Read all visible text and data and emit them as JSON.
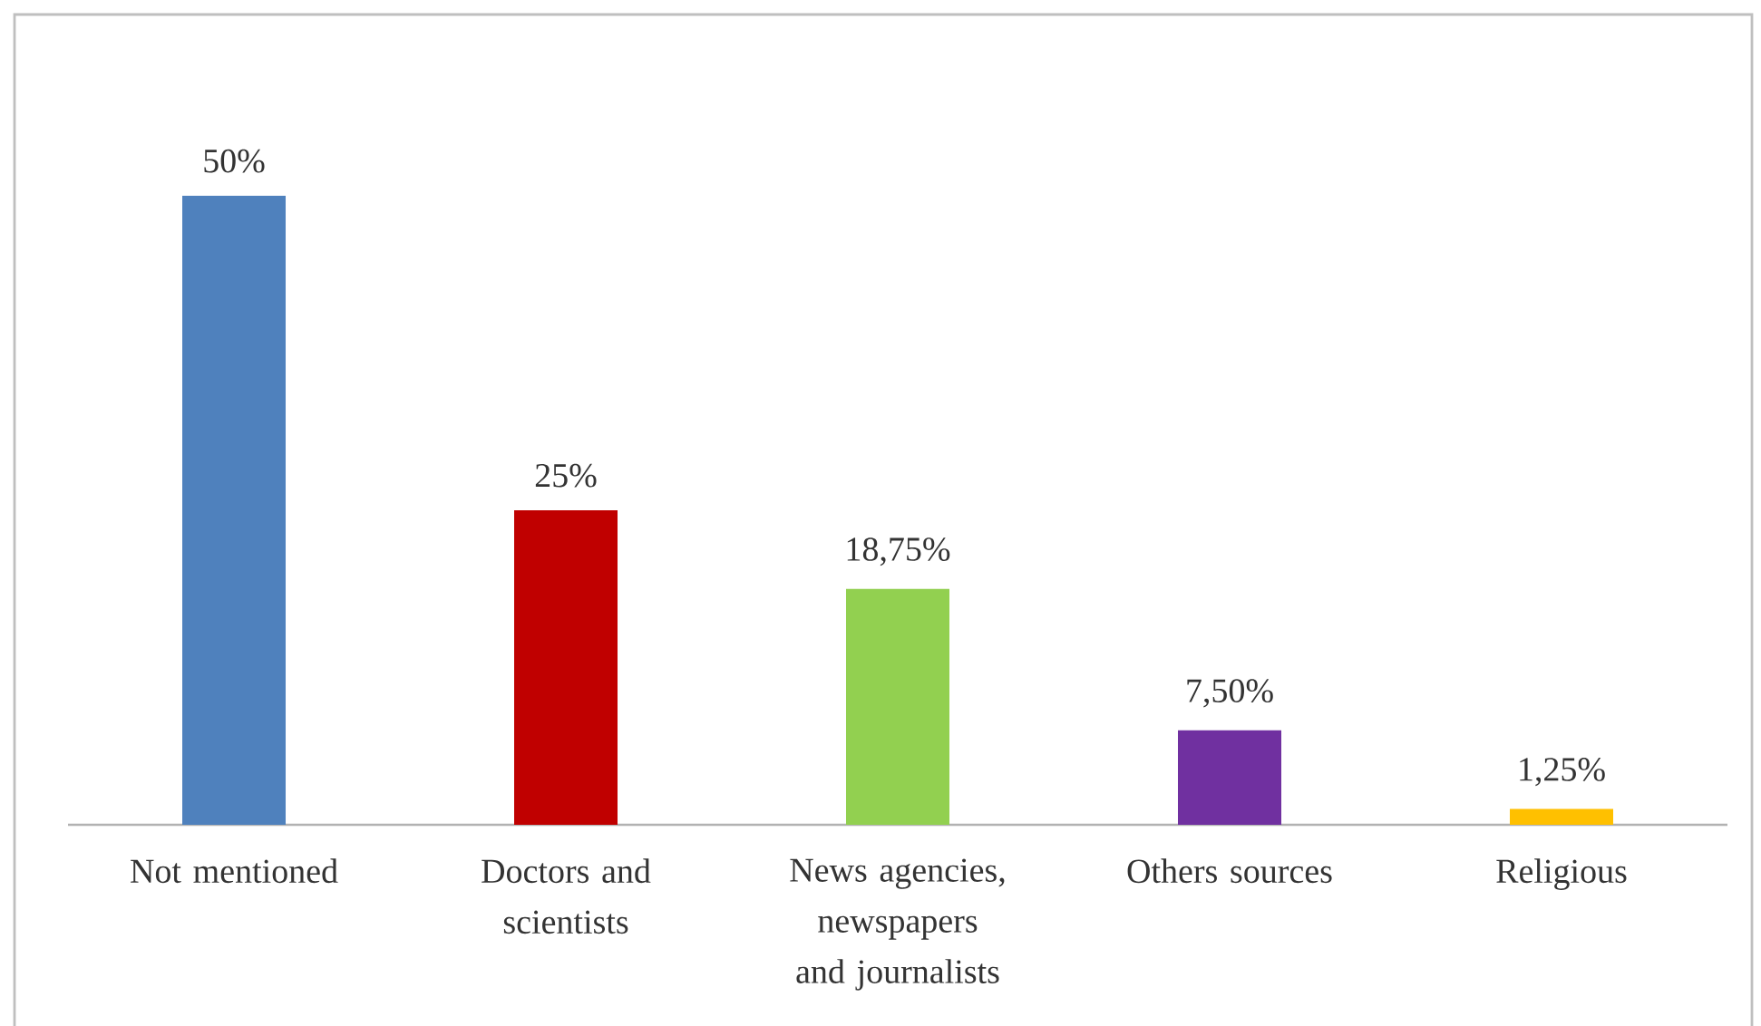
{
  "chart_data": {
    "type": "bar",
    "categories": [
      "Not mentioned",
      "Doctors and scientists",
      "News agencies, newspapers and journalists",
      "Others sources",
      "Religious"
    ],
    "values": [
      50,
      25,
      18.75,
      7.5,
      1.25
    ],
    "value_labels": [
      "50%",
      "25%",
      "18,75%",
      "7,50%",
      "1,25%"
    ],
    "colors": [
      "#4f81bd",
      "#c00000",
      "#92d050",
      "#7030a0",
      "#ffc000"
    ]
  }
}
